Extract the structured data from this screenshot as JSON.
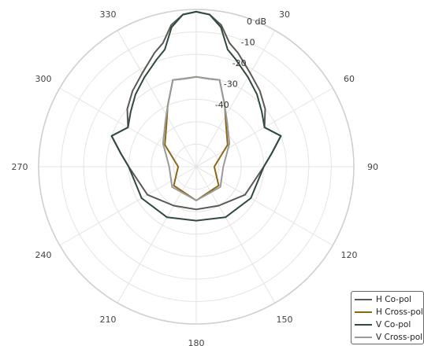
{
  "chart_data": {
    "type": "polar-line",
    "angle_ticks": [
      0,
      30,
      60,
      90,
      120,
      150,
      180,
      210,
      240,
      270,
      300,
      330
    ],
    "angle_tick_labels": [
      "",
      "30",
      "60",
      "90",
      "120",
      "150",
      "180",
      "210",
      "240",
      "270",
      "300",
      "330"
    ],
    "radial_ticks": [
      0,
      -10,
      -20,
      -30,
      -40
    ],
    "radial_tick_labels": [
      "0 dB",
      "-10",
      "-20",
      "-30",
      "-40"
    ],
    "rlim": [
      -70,
      0
    ],
    "direction": "clockwise",
    "zero_location": "top",
    "grid": true,
    "legend_position": "bottom-right",
    "series": [
      {
        "name": "H Co-pol",
        "color": "#5a5a52",
        "points": [
          [
            0,
            -1
          ],
          [
            5,
            -2
          ],
          [
            10,
            -6
          ],
          [
            15,
            -13
          ],
          [
            20,
            -16
          ],
          [
            30,
            -22
          ],
          [
            40,
            -26
          ],
          [
            50,
            -30
          ],
          [
            60,
            -35
          ],
          [
            70,
            -30
          ],
          [
            80,
            -36
          ],
          [
            90,
            -40
          ],
          [
            120,
            -45
          ],
          [
            150,
            -50
          ],
          [
            180,
            -51
          ],
          [
            210,
            -50
          ],
          [
            240,
            -45
          ],
          [
            270,
            -40
          ],
          [
            280,
            -36
          ],
          [
            290,
            -30
          ],
          [
            300,
            -35
          ],
          [
            310,
            -30
          ],
          [
            320,
            -26
          ],
          [
            330,
            -22
          ],
          [
            340,
            -16
          ],
          [
            345,
            -13
          ],
          [
            350,
            -6
          ],
          [
            355,
            -2
          ]
        ]
      },
      {
        "name": "H Cross-pol",
        "color": "#8b6914",
        "points": [
          [
            0,
            -30
          ],
          [
            8,
            -30.5
          ],
          [
            15,
            -30
          ],
          [
            25,
            -40
          ],
          [
            35,
            -47
          ],
          [
            55,
            -53
          ],
          [
            90,
            -62
          ],
          [
            130,
            -57
          ],
          [
            180,
            -55
          ],
          [
            230,
            -57
          ],
          [
            270,
            -62
          ],
          [
            305,
            -53
          ],
          [
            325,
            -47
          ],
          [
            335,
            -40
          ],
          [
            345,
            -30
          ],
          [
            352,
            -30.5
          ]
        ]
      },
      {
        "name": "V Co-pol",
        "color": "#2f4a40",
        "points": [
          [
            0,
            -1
          ],
          [
            5,
            -2
          ],
          [
            10,
            -7
          ],
          [
            15,
            -16
          ],
          [
            20,
            -19
          ],
          [
            30,
            -24
          ],
          [
            40,
            -28
          ],
          [
            50,
            -32
          ],
          [
            60,
            -35
          ],
          [
            70,
            -30
          ],
          [
            80,
            -36
          ],
          [
            90,
            -40
          ],
          [
            120,
            -42
          ],
          [
            150,
            -44
          ],
          [
            180,
            -46
          ],
          [
            210,
            -44
          ],
          [
            240,
            -42
          ],
          [
            270,
            -40
          ],
          [
            280,
            -36
          ],
          [
            290,
            -30
          ],
          [
            300,
            -35
          ],
          [
            310,
            -32
          ],
          [
            320,
            -28
          ],
          [
            330,
            -24
          ],
          [
            340,
            -19
          ],
          [
            345,
            -16
          ],
          [
            350,
            -7
          ],
          [
            355,
            -2
          ]
        ]
      },
      {
        "name": "V Cross-pol",
        "color": "#9a9a9a",
        "points": [
          [
            0,
            -30
          ],
          [
            8,
            -30.5
          ],
          [
            15,
            -30
          ],
          [
            25,
            -40
          ],
          [
            35,
            -46
          ],
          [
            55,
            -52
          ],
          [
            90,
            -58
          ],
          [
            130,
            -56
          ],
          [
            180,
            -55
          ],
          [
            230,
            -56
          ],
          [
            270,
            -58
          ],
          [
            305,
            -52
          ],
          [
            325,
            -46
          ],
          [
            335,
            -40
          ],
          [
            345,
            -30
          ],
          [
            352,
            -30.5
          ]
        ]
      }
    ]
  }
}
